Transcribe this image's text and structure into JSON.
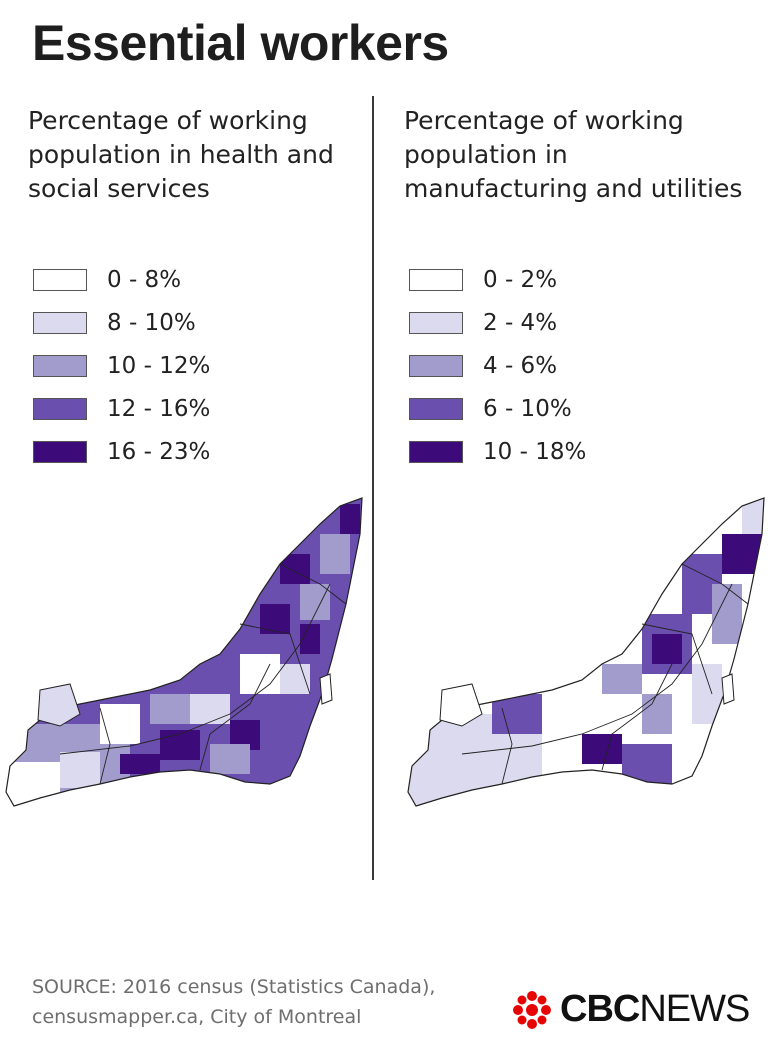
{
  "title": "Essential workers",
  "left_panel": {
    "subtitle": "Percentage of working population in health and social services",
    "legend": [
      {
        "label": "0 - 8%",
        "color": "#ffffff"
      },
      {
        "label": "8 - 10%",
        "color": "#dcdaee"
      },
      {
        "label": "10 - 12%",
        "color": "#a29ccc"
      },
      {
        "label": "12 - 16%",
        "color": "#6a4fae"
      },
      {
        "label": "16 - 23%",
        "color": "#3d0a7a"
      }
    ]
  },
  "right_panel": {
    "subtitle": "Percentage of working population in manufacturing and utilities",
    "legend": [
      {
        "label": "0 - 2%",
        "color": "#ffffff"
      },
      {
        "label": "2 - 4%",
        "color": "#dcdaee"
      },
      {
        "label": "4 - 6%",
        "color": "#a29ccc"
      },
      {
        "label": "6 - 10%",
        "color": "#6a4fae"
      },
      {
        "label": "10 - 18%",
        "color": "#3d0a7a"
      }
    ]
  },
  "source": {
    "line1": "SOURCE: 2016 census (Statistics Canada),",
    "line2": "censusmapper.ca, City of Montreal"
  },
  "logo": {
    "part1": "CBC",
    "part2": "NEWS",
    "gem_color": "#e60505"
  }
}
